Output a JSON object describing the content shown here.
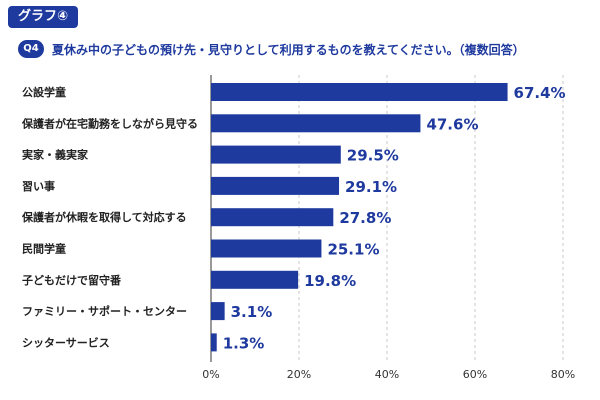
{
  "badge": "グラフ④",
  "question_number": "Q4",
  "question": "夏休み中の子どもの預け先・見守りとして利用するものを教えてください。（複数回答）",
  "colors": {
    "bar": "#1f3a9e",
    "grid": "#c8c8c8",
    "axis": "#333333"
  },
  "chart_data": {
    "type": "bar",
    "orientation": "horizontal",
    "categories": [
      "公設学童",
      "保護者が在宅勤務をしながら見守る",
      "実家・義実家",
      "習い事",
      "保護者が休暇を取得して対応する",
      "民間学童",
      "子どもだけで留守番",
      "ファミリー・サポート・センター",
      "シッターサービス"
    ],
    "values": [
      67.4,
      47.6,
      29.5,
      29.1,
      27.8,
      25.1,
      19.8,
      3.1,
      1.3
    ],
    "value_labels": [
      "67.4%",
      "47.6%",
      "29.5%",
      "29.1%",
      "27.8%",
      "25.1%",
      "19.8%",
      "3.1%",
      "1.3%"
    ],
    "xlim": [
      0,
      80
    ],
    "ticks": [
      0,
      20,
      40,
      60,
      80
    ],
    "tick_labels": [
      "0%",
      "20%",
      "40%",
      "60%",
      "80%"
    ],
    "grid": true
  }
}
